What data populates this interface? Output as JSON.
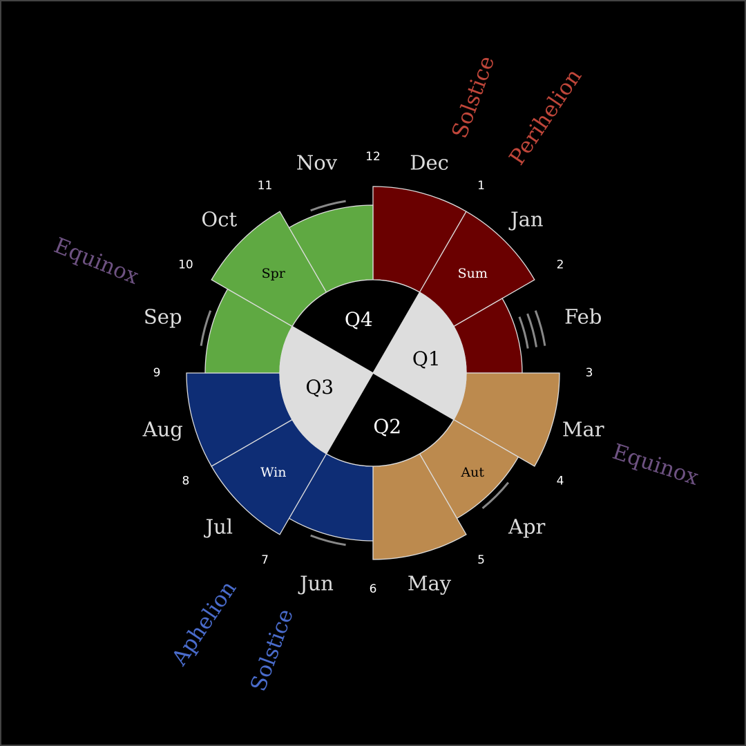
{
  "colors": {
    "background": "#000000",
    "summer": "#6a0000",
    "autumn": "#bc8a4e",
    "winter": "#0e2d75",
    "spring": "#5fa942",
    "quarter_light": "#dddddd",
    "quarter_dark": "#000000",
    "stroke": "#dddddd",
    "month_label": "#dddddd",
    "mark": "#888888",
    "red_annotation": "#c0463a",
    "purple_annotation": "#6e5282",
    "blue_annotation": "#4a6ccc"
  },
  "months": [
    {
      "name": "Dec",
      "season": "summer",
      "level": 1.0,
      "marks": 0
    },
    {
      "name": "Jan",
      "season": "summer",
      "level": 1.0,
      "marks": 0
    },
    {
      "name": "Feb",
      "season": "summer",
      "level": 0.6,
      "marks": 3
    },
    {
      "name": "Mar",
      "season": "autumn",
      "level": 1.0,
      "marks": 0
    },
    {
      "name": "Apr",
      "season": "autumn",
      "level": 0.8,
      "marks": 1
    },
    {
      "name": "May",
      "season": "autumn",
      "level": 1.0,
      "marks": 0
    },
    {
      "name": "Jun",
      "season": "winter",
      "level": 0.8,
      "marks": 1
    },
    {
      "name": "Jul",
      "season": "winter",
      "level": 1.0,
      "marks": 0
    },
    {
      "name": "Aug",
      "season": "winter",
      "level": 1.0,
      "marks": 0
    },
    {
      "name": "Sep",
      "season": "spring",
      "level": 0.8,
      "marks": 1
    },
    {
      "name": "Oct",
      "season": "spring",
      "level": 1.0,
      "marks": 0
    },
    {
      "name": "Nov",
      "season": "spring",
      "level": 0.8,
      "marks": 1
    }
  ],
  "boundary_numbers": [
    "12",
    "1",
    "2",
    "3",
    "4",
    "5",
    "6",
    "7",
    "8",
    "9",
    "10",
    "11"
  ],
  "seasons": [
    {
      "label": "Sum",
      "month_index": 1,
      "text_color": "#ffffff"
    },
    {
      "label": "Aut",
      "month_index": 4,
      "text_color": "#000000"
    },
    {
      "label": "Win",
      "month_index": 7,
      "text_color": "#ffffff"
    },
    {
      "label": "Spr",
      "month_index": 10,
      "text_color": "#000000"
    }
  ],
  "quarters": [
    {
      "label": "Q1",
      "fill": "light"
    },
    {
      "label": "Q2",
      "fill": "dark"
    },
    {
      "label": "Q3",
      "fill": "light"
    },
    {
      "label": "Q4",
      "fill": "dark"
    }
  ],
  "annotations": [
    {
      "text": "Solstice",
      "color": "red_annotation"
    },
    {
      "text": "Perihelion",
      "color": "red_annotation"
    },
    {
      "text": "Equinox",
      "color": "purple_annotation"
    },
    {
      "text": "Equinox",
      "color": "purple_annotation"
    },
    {
      "text": "Aphelion",
      "color": "blue_annotation"
    },
    {
      "text": "Solstice",
      "color": "blue_annotation"
    }
  ]
}
